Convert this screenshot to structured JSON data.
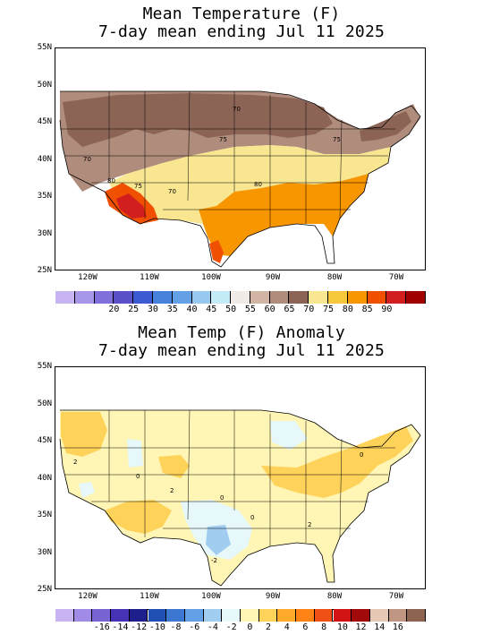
{
  "top": {
    "title1": "Mean Temperature (F)",
    "title2": "7-day mean ending Jul 11 2025",
    "lat_labels": [
      "55N",
      "50N",
      "45N",
      "40N",
      "35N",
      "30N",
      "25N"
    ],
    "lon_labels": [
      "120W",
      "110W",
      "100W",
      "90W",
      "80W",
      "70W"
    ],
    "contour_labels": [
      "70",
      "75",
      "70",
      "80",
      "75",
      "70",
      "80",
      "75"
    ],
    "colorbar": {
      "colors": [
        "#c8b4f0",
        "#a896e8",
        "#8070dc",
        "#5a50c8",
        "#3c5ad2",
        "#4682dc",
        "#64a0e6",
        "#96c8f0",
        "#c4ebf8",
        "#f0ebe6",
        "#d2b4a4",
        "#b08c7c",
        "#8c6456",
        "#f8e690",
        "#f8c83c",
        "#f89600",
        "#f05000",
        "#d21e1e",
        "#a00000"
      ],
      "labels": [
        "20",
        "25",
        "30",
        "35",
        "40",
        "45",
        "50",
        "55",
        "60",
        "65",
        "70",
        "75",
        "80",
        "85",
        "90"
      ]
    }
  },
  "bottom": {
    "title1": "Mean Temp (F) Anomaly",
    "title2": "7-day mean ending Jul 11 2025",
    "lat_labels": [
      "55N",
      "50N",
      "45N",
      "40N",
      "35N",
      "30N",
      "25N"
    ],
    "lon_labels": [
      "120W",
      "110W",
      "100W",
      "90W",
      "80W",
      "70W"
    ],
    "contour_labels": [
      "2",
      "0",
      "2",
      "0",
      "0",
      "-2",
      "2",
      "0"
    ],
    "colorbar": {
      "colors": [
        "#c8b4f0",
        "#a08ce6",
        "#7864d2",
        "#4632b4",
        "#1e1e8c",
        "#2050b4",
        "#3c78d2",
        "#64a0e6",
        "#a0cdf0",
        "#e6f8fa",
        "#fff5b4",
        "#ffd25a",
        "#ffaa28",
        "#ff8214",
        "#f05014",
        "#d21414",
        "#a00a0a",
        "#e6c8b4",
        "#be9682",
        "#8c6450"
      ],
      "labels": [
        "-16",
        "-14",
        "-12",
        "-10",
        "-8",
        "-6",
        "-4",
        "-2",
        "0",
        "2",
        "4",
        "6",
        "8",
        "10",
        "12",
        "14",
        "16"
      ]
    }
  },
  "legend_colors": {
    "brown_dark": "#8c6456",
    "brown_light": "#b08c7c",
    "yellow": "#f8e690",
    "orange": "#f89600",
    "red": "#d21e1e",
    "anom_yellow": "#fff5b4",
    "anom_orange": "#ffd25a",
    "anom_blue": "#a0cdf0",
    "anom_lightblue": "#e6f8fa"
  }
}
